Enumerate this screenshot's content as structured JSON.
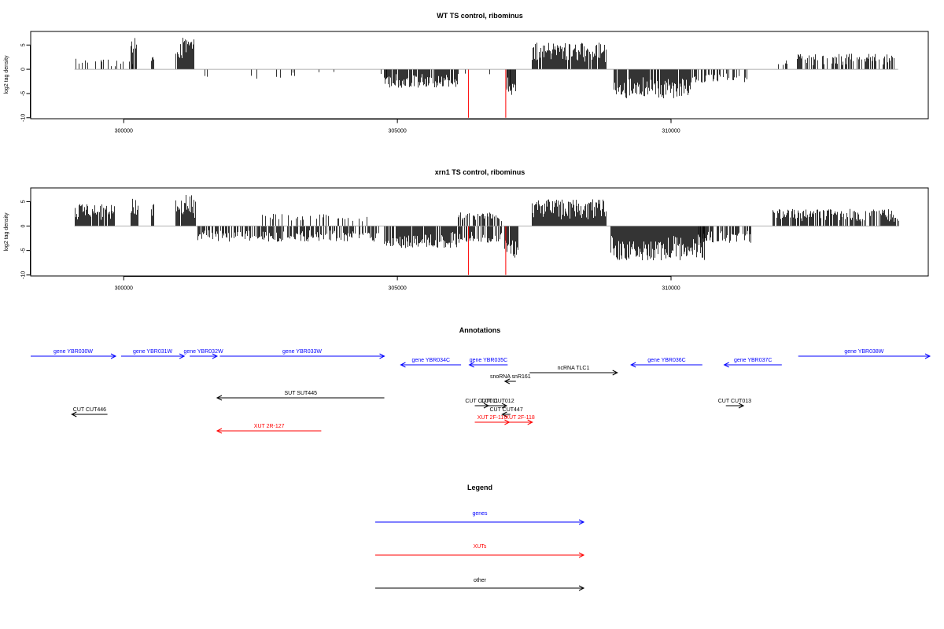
{
  "chart_data": [
    {
      "type": "bar",
      "title": "WT TS control, ribominus",
      "xlabel": "",
      "ylabel": "log2 tag density",
      "xlim": [
        298300,
        314700
      ],
      "ylim": [
        -10.2,
        7.8
      ],
      "xticks": [
        300000,
        305000,
        310000
      ],
      "yticks": [
        -10,
        -5,
        0,
        5
      ],
      "colors": {
        "bars": "#000000",
        "markers": "#ff0000"
      },
      "markers": [
        {
          "x": 306300,
          "y": -10
        },
        {
          "x": 306980,
          "y": -10
        }
      ],
      "segments": [
        {
          "start": 299100,
          "end": 299200,
          "dir": 1,
          "amp": 2.5,
          "density": 0.25
        },
        {
          "start": 299200,
          "end": 300200,
          "dir": 1,
          "amp": 2.0,
          "density": 0.15
        },
        {
          "start": 300120,
          "end": 300230,
          "dir": 1,
          "amp": 6.5,
          "density": 0.9
        },
        {
          "start": 300500,
          "end": 300540,
          "dir": 1,
          "amp": 3.2,
          "density": 1.0
        },
        {
          "start": 300950,
          "end": 301270,
          "dir": 1,
          "amp": 6.5,
          "density": 0.95
        },
        {
          "start": 301400,
          "end": 304500,
          "dir": -1,
          "amp": 2.0,
          "density": 0.05
        },
        {
          "start": 304000,
          "end": 305000,
          "dir": -1,
          "amp": 2.0,
          "density": 0.05
        },
        {
          "start": 304750,
          "end": 306100,
          "dir": -1,
          "amp": 3.8,
          "density": 0.9
        },
        {
          "start": 306200,
          "end": 306700,
          "dir": -1,
          "amp": 1.5,
          "density": 0.08
        },
        {
          "start": 306950,
          "end": 307050,
          "dir": -1,
          "amp": 4.0,
          "density": 0.4
        },
        {
          "start": 307000,
          "end": 307150,
          "dir": -1,
          "amp": 6.5,
          "density": 0.9
        },
        {
          "start": 307450,
          "end": 308800,
          "dir": 1,
          "amp": 5.5,
          "density": 0.95
        },
        {
          "start": 308950,
          "end": 310350,
          "dir": -1,
          "amp": 6.0,
          "density": 0.95
        },
        {
          "start": 310350,
          "end": 311400,
          "dir": -1,
          "amp": 2.8,
          "density": 0.4
        },
        {
          "start": 311900,
          "end": 312300,
          "dir": 1,
          "amp": 2.0,
          "density": 0.25
        },
        {
          "start": 312300,
          "end": 314150,
          "dir": 1,
          "amp": 3.2,
          "density": 0.45
        }
      ]
    },
    {
      "type": "bar",
      "title": "xrn1 TS control, ribominus",
      "xlabel": "",
      "ylabel": "log2 tag density",
      "xlim": [
        298300,
        314700
      ],
      "ylim": [
        -10.2,
        7.8
      ],
      "xticks": [
        300000,
        305000,
        310000
      ],
      "yticks": [
        -10,
        -5,
        0,
        5
      ],
      "colors": {
        "bars": "#000000",
        "markers": "#ff0000"
      },
      "markers": [
        {
          "x": 306300,
          "y": -10
        },
        {
          "x": 306980,
          "y": -10
        }
      ],
      "segments": [
        {
          "start": 299100,
          "end": 299850,
          "dir": 1,
          "amp": 4.5,
          "density": 0.85
        },
        {
          "start": 300100,
          "end": 300250,
          "dir": 1,
          "amp": 6.0,
          "density": 0.9
        },
        {
          "start": 300500,
          "end": 300540,
          "dir": 1,
          "amp": 4.5,
          "density": 1.0
        },
        {
          "start": 300950,
          "end": 301300,
          "dir": 1,
          "amp": 6.5,
          "density": 0.95
        },
        {
          "start": 301350,
          "end": 304700,
          "dir": -1,
          "amp": 3.2,
          "density": 0.6
        },
        {
          "start": 302500,
          "end": 304500,
          "dir": 1,
          "amp": 2.5,
          "density": 0.25
        },
        {
          "start": 304750,
          "end": 306100,
          "dir": -1,
          "amp": 4.5,
          "density": 0.9
        },
        {
          "start": 306100,
          "end": 306900,
          "dir": -1,
          "amp": 3.5,
          "density": 0.7
        },
        {
          "start": 306100,
          "end": 306900,
          "dir": 1,
          "amp": 2.8,
          "density": 0.6
        },
        {
          "start": 306950,
          "end": 307200,
          "dir": -1,
          "amp": 6.5,
          "density": 0.9
        },
        {
          "start": 307450,
          "end": 308800,
          "dir": 1,
          "amp": 5.5,
          "density": 0.95
        },
        {
          "start": 308900,
          "end": 310600,
          "dir": -1,
          "amp": 7.0,
          "density": 1.0
        },
        {
          "start": 310500,
          "end": 311450,
          "dir": -1,
          "amp": 3.5,
          "density": 0.6
        },
        {
          "start": 311850,
          "end": 314150,
          "dir": 1,
          "amp": 3.5,
          "density": 0.75
        }
      ]
    }
  ],
  "annotations": {
    "title": "Annotations",
    "x_range": [
      298300,
      314700
    ],
    "colors": {
      "gene": "#0000ff",
      "xut": "#ff0000",
      "other": "#000000"
    },
    "items": [
      {
        "label": "gene YBR030W",
        "kind": "gene",
        "start": 298300,
        "end": 299850,
        "row": 0,
        "dir": 1
      },
      {
        "label": "gene YBR031W",
        "kind": "gene",
        "start": 299950,
        "end": 301100,
        "row": 0,
        "dir": 1
      },
      {
        "label": "gene YBR032W",
        "kind": "gene",
        "start": 301200,
        "end": 301700,
        "row": 0,
        "dir": 1
      },
      {
        "label": "gene YBR033W",
        "kind": "gene",
        "start": 301750,
        "end": 304750,
        "row": 0,
        "dir": 1
      },
      {
        "label": "gene YBR034C",
        "kind": "gene",
        "start": 305050,
        "end": 306150,
        "row": 1,
        "dir": -1
      },
      {
        "label": "gene YBR035C",
        "kind": "gene",
        "start": 306300,
        "end": 307000,
        "row": 1,
        "dir": -1
      },
      {
        "label": "gene YBR036C",
        "kind": "gene",
        "start": 309250,
        "end": 310550,
        "row": 1,
        "dir": -1
      },
      {
        "label": "gene YBR037C",
        "kind": "gene",
        "start": 310950,
        "end": 312000,
        "row": 1,
        "dir": -1
      },
      {
        "label": "gene YBR038W",
        "kind": "gene",
        "start": 312300,
        "end": 314700,
        "row": 0,
        "dir": 1
      },
      {
        "label": "ncRNA TLC1",
        "kind": "other",
        "start": 307400,
        "end": 309000,
        "row": 2,
        "dir": 1
      },
      {
        "label": "snoRNA snR161",
        "kind": "other",
        "start": 306950,
        "end": 307150,
        "row": 3,
        "dir": -1
      },
      {
        "label": "SUT SUT445",
        "kind": "other",
        "start": 301700,
        "end": 304750,
        "row": 4,
        "dir": -1
      },
      {
        "label": "CUT CUT446",
        "kind": "other",
        "start": 299050,
        "end": 299700,
        "row": 6,
        "dir": -1
      },
      {
        "label": "CUT CUT011",
        "kind": "other",
        "start": 306400,
        "end": 306650,
        "row": 5,
        "dir": 1
      },
      {
        "label": "CUT CUT012",
        "kind": "other",
        "start": 306650,
        "end": 306980,
        "row": 5,
        "dir": 1
      },
      {
        "label": "CUT CUT447",
        "kind": "other",
        "start": 306900,
        "end": 307050,
        "row": 6,
        "dir": -1
      },
      {
        "label": "CUT CUT013",
        "kind": "other",
        "start": 310980,
        "end": 311300,
        "row": 5,
        "dir": 1
      },
      {
        "label": "XUT 2F-116",
        "kind": "xut",
        "start": 306400,
        "end": 307030,
        "row": 7,
        "dir": 1
      },
      {
        "label": "XUT 2F-118",
        "kind": "xut",
        "start": 307000,
        "end": 307450,
        "row": 7,
        "dir": 1
      },
      {
        "label": "XUT 2R-127",
        "kind": "xut",
        "start": 301700,
        "end": 303600,
        "row": 8,
        "dir": -1
      }
    ]
  },
  "legend": {
    "title": "Legend",
    "items": [
      {
        "label": "genes",
        "color": "#0000ff"
      },
      {
        "label": "XUTs",
        "color": "#ff0000"
      },
      {
        "label": "other",
        "color": "#000000"
      }
    ]
  }
}
